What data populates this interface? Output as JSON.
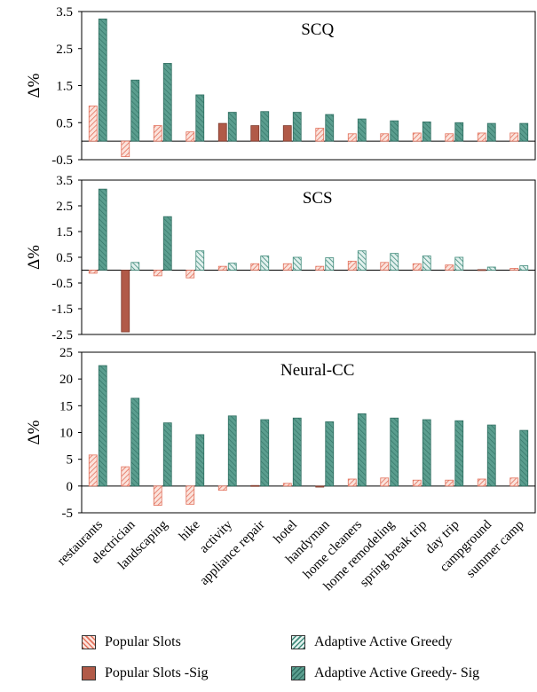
{
  "colors": {
    "popular": "#e2715c",
    "popular_fill": "#fbe3dc",
    "popular_sig": "#b15a48",
    "adaptive": "#3f8a7a",
    "adaptive_fill": "#e2f1ee",
    "adaptive_sig": "#5b9e8f"
  },
  "categories": [
    "restaurants",
    "electrician",
    "landscaping",
    "hike",
    "activity",
    "appliance repair",
    "hotel",
    "handyman",
    "home cleaners",
    "home remodeling",
    "spring break trip",
    "day trip",
    "campground",
    "summer camp"
  ],
  "legend": [
    {
      "label": "Popular Slots",
      "style": "popular"
    },
    {
      "label": "Adaptive Active Greedy",
      "style": "adaptive"
    },
    {
      "label": "Popular Slots -Sig",
      "style": "popular_sig"
    },
    {
      "label": "Adaptive Active Greedy- Sig",
      "style": "adaptive_sig"
    }
  ],
  "chart_data": [
    {
      "type": "bar",
      "title": "SCQ",
      "ylabel": "Δ%",
      "ylim": [
        -0.5,
        3.5
      ],
      "yticks": [
        "3.5",
        "2.5",
        "1.5",
        "0.5",
        "-0.5"
      ],
      "ytick_values": [
        3.5,
        2.5,
        1.5,
        0.5,
        -0.5
      ],
      "series": [
        {
          "name": "Popular Slots",
          "values": [
            0.95,
            -0.42,
            0.42,
            0.25,
            0.48,
            0.42,
            0.42,
            0.35,
            0.2,
            0.2,
            0.22,
            0.2,
            0.22,
            0.22
          ],
          "sig": [
            false,
            false,
            false,
            false,
            true,
            true,
            true,
            false,
            false,
            false,
            false,
            false,
            false,
            false
          ]
        },
        {
          "name": "Adaptive Active Greedy",
          "values": [
            3.3,
            1.65,
            2.1,
            1.25,
            0.78,
            0.8,
            0.78,
            0.72,
            0.6,
            0.55,
            0.52,
            0.5,
            0.48,
            0.48
          ],
          "sig": [
            true,
            true,
            true,
            true,
            true,
            true,
            true,
            true,
            true,
            true,
            true,
            true,
            true,
            true
          ]
        }
      ]
    },
    {
      "type": "bar",
      "title": "SCS",
      "ylabel": "Δ%",
      "ylim": [
        -2.5,
        3.5
      ],
      "yticks": [
        "3.5",
        "2.5",
        "1.5",
        "0.5",
        "-0.5",
        "-1.5",
        "-2.5"
      ],
      "ytick_values": [
        3.5,
        2.5,
        1.5,
        0.5,
        -0.5,
        -1.5,
        -2.5
      ],
      "series": [
        {
          "name": "Popular Slots",
          "values": [
            -0.12,
            -2.4,
            -0.22,
            -0.3,
            0.15,
            0.25,
            0.25,
            0.15,
            0.35,
            0.3,
            0.25,
            0.2,
            0.02,
            0.07
          ],
          "sig": [
            false,
            true,
            false,
            false,
            false,
            false,
            false,
            false,
            false,
            false,
            false,
            false,
            true,
            false
          ]
        },
        {
          "name": "Adaptive Active Greedy",
          "values": [
            3.15,
            0.3,
            2.08,
            0.75,
            0.27,
            0.55,
            0.5,
            0.48,
            0.75,
            0.65,
            0.55,
            0.5,
            0.12,
            0.17
          ],
          "sig": [
            true,
            false,
            true,
            false,
            false,
            false,
            false,
            false,
            false,
            false,
            false,
            false,
            false,
            false
          ]
        }
      ]
    },
    {
      "type": "bar",
      "title": "Neural-CC",
      "ylabel": "Δ%",
      "ylim": [
        -5,
        25
      ],
      "yticks": [
        "25",
        "20",
        "15",
        "10",
        "5",
        "0",
        "-5"
      ],
      "ytick_values": [
        25,
        20,
        15,
        10,
        5,
        0,
        -5
      ],
      "series": [
        {
          "name": "Popular Slots",
          "values": [
            5.8,
            3.6,
            -3.6,
            -3.4,
            -0.8,
            0.1,
            0.5,
            -0.2,
            1.3,
            1.5,
            1.1,
            1.1,
            1.3,
            1.5
          ],
          "sig": [
            false,
            false,
            false,
            false,
            false,
            true,
            false,
            true,
            false,
            false,
            false,
            false,
            false,
            false
          ]
        },
        {
          "name": "Adaptive Active Greedy",
          "values": [
            22.5,
            16.4,
            11.8,
            9.6,
            13.1,
            12.4,
            12.7,
            12.0,
            13.5,
            12.7,
            12.4,
            12.2,
            11.4,
            10.4
          ],
          "sig": [
            true,
            true,
            true,
            true,
            true,
            true,
            true,
            true,
            true,
            true,
            true,
            true,
            true,
            true
          ]
        }
      ]
    }
  ]
}
